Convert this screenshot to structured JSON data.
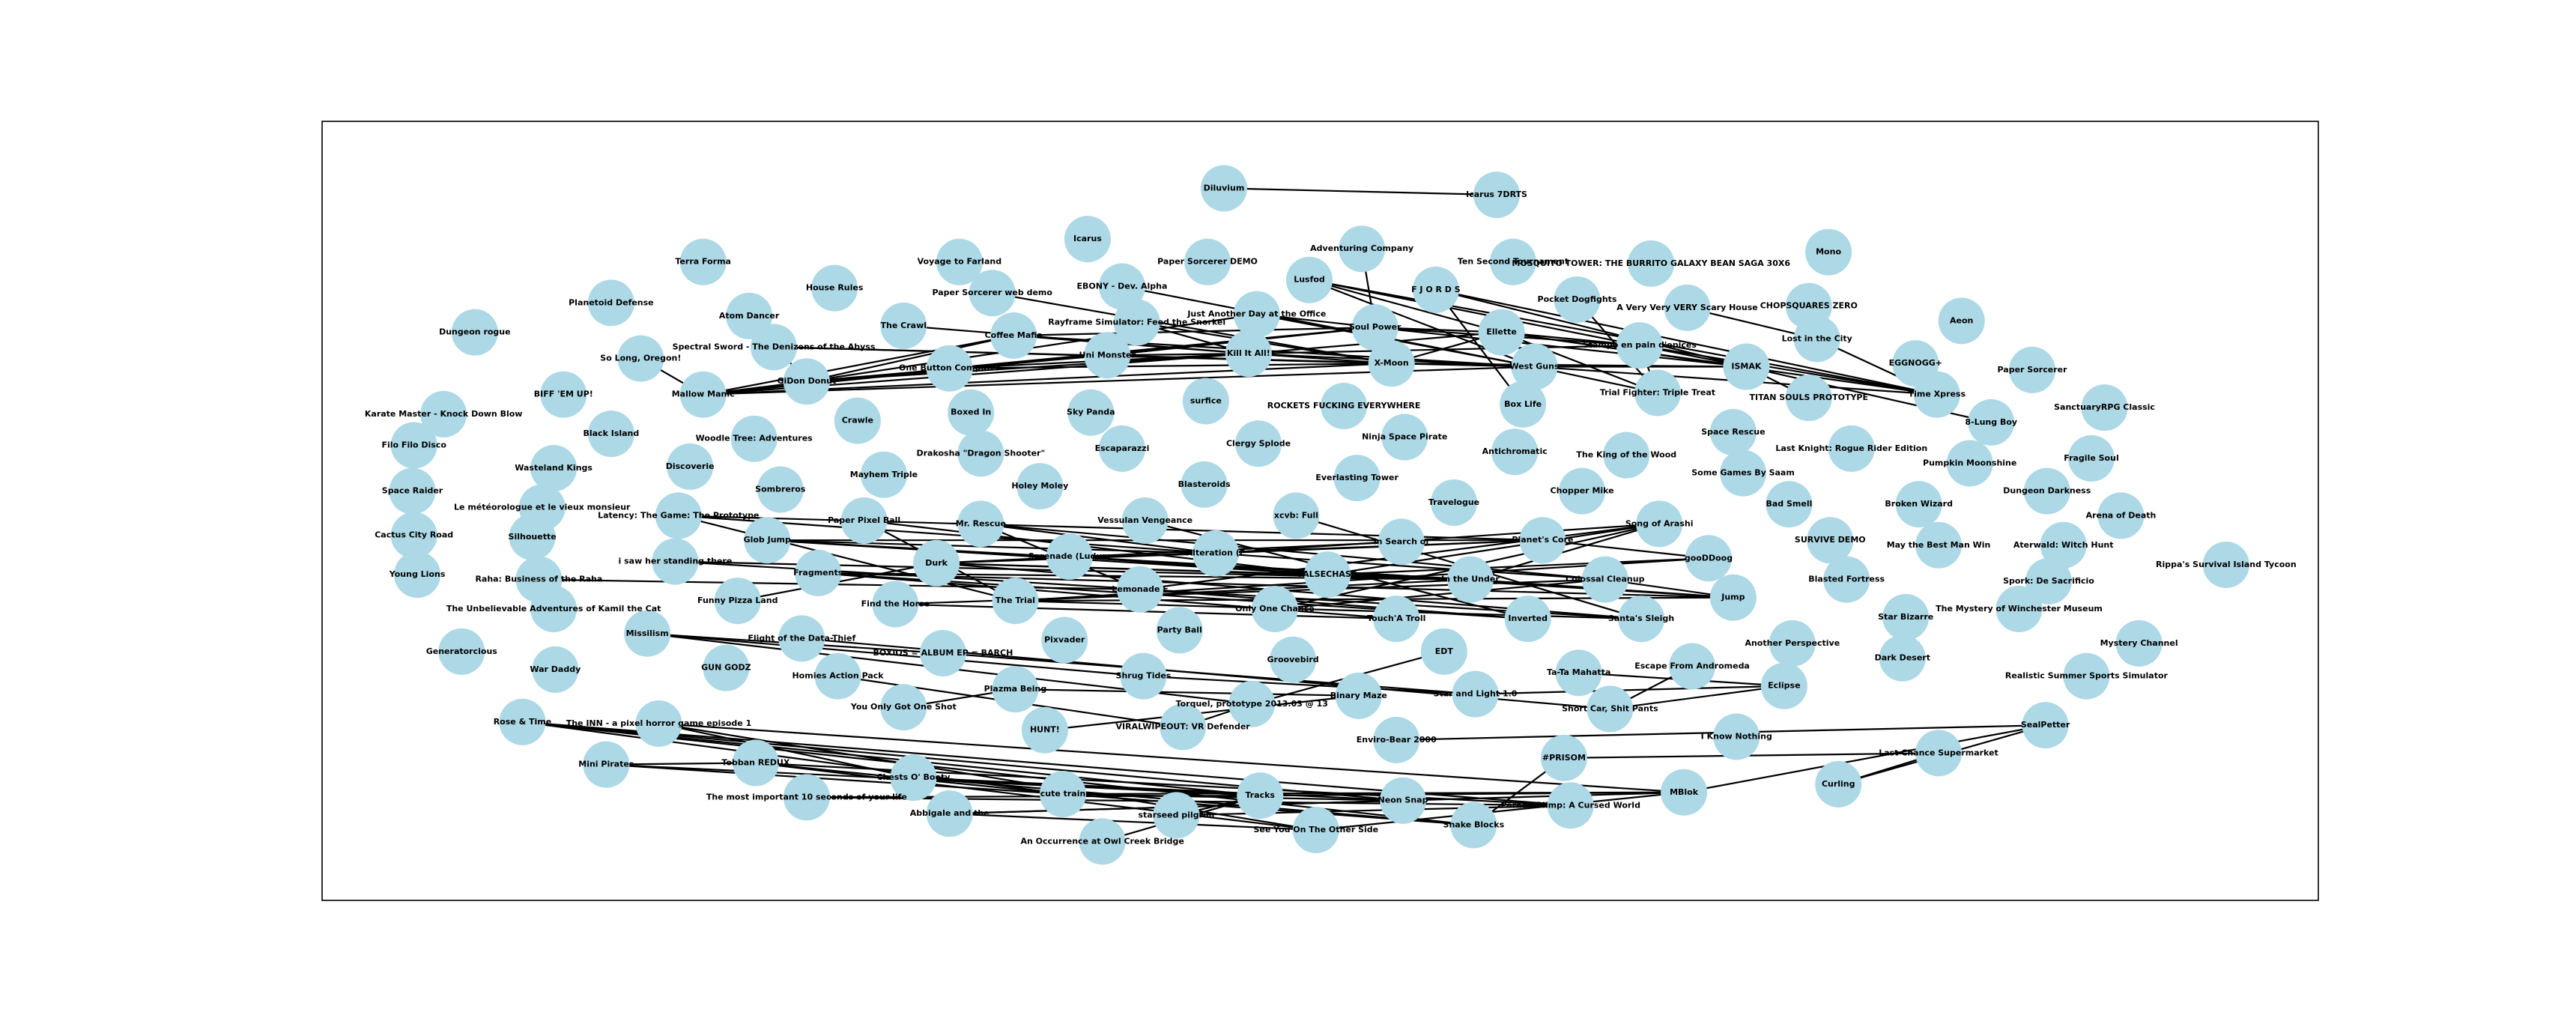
{
  "nodes": [
    {
      "label": "Diluvium"
    },
    {
      "label": "Icarus 7DRTS"
    },
    {
      "label": "Mono"
    },
    {
      "label": "Icarus"
    },
    {
      "label": "Voyage to Farland"
    },
    {
      "label": "Paper Sorcerer DEMO"
    },
    {
      "label": "Adventuring Company"
    },
    {
      "label": "Ten Second Tournament"
    },
    {
      "label": "MOSQUITO TOWER: THE BURRITO GALAXY BEAN SAGA 30X6"
    },
    {
      "label": "Terra Forma"
    },
    {
      "label": "House Rules"
    },
    {
      "label": "EBONY - Dev. Alpha"
    },
    {
      "label": "Lusfod"
    },
    {
      "label": "F J O R D S"
    },
    {
      "label": "Pocket Dogfights"
    },
    {
      "label": "CHOPSQUARES ZERO"
    },
    {
      "label": "Aeon"
    },
    {
      "label": "Planetoid Defense"
    },
    {
      "label": "Atom Dancer"
    },
    {
      "label": "Paper Sorcerer web demo"
    },
    {
      "label": "A Very Very VERY Scary House"
    },
    {
      "label": "Dungeon rogue"
    },
    {
      "label": "The Crawl"
    },
    {
      "label": "Rayframe Simulator: Feed the Snorkel"
    },
    {
      "label": "Just Another Day at the Office"
    },
    {
      "label": "Soul Power"
    },
    {
      "label": "Ellette"
    },
    {
      "label": "Spectral Sword - The Denizens of the Abyss"
    },
    {
      "label": "Coffee Mafia"
    },
    {
      "label": "Lost in the City"
    },
    {
      "label": "Stampo en pain d'epices"
    },
    {
      "label": "So Long, Oregon!"
    },
    {
      "label": "Uni Monster"
    },
    {
      "label": "Kill It All!"
    },
    {
      "label": "X-Moon"
    },
    {
      "label": "West Guns"
    },
    {
      "label": "ISMAK"
    },
    {
      "label": "EGGNOGG+"
    },
    {
      "label": "Paper Sorcerer"
    },
    {
      "label": "One Button Computer"
    },
    {
      "label": "GiDon Donut"
    },
    {
      "label": "Mallow Manic"
    },
    {
      "label": "BIFF 'EM UP!"
    },
    {
      "label": "Trial Fighter: Triple Treat"
    },
    {
      "label": "TITAN SOULS PROTOTYPE"
    },
    {
      "label": "Time Xpress"
    },
    {
      "label": "Boxed In"
    },
    {
      "label": "Sky Panda"
    },
    {
      "label": "surfice"
    },
    {
      "label": "ROCKETS FUCKING EVERYWHERE"
    },
    {
      "label": "Box Life"
    },
    {
      "label": "8-Lung Boy"
    },
    {
      "label": "SanctuaryRPG Classic"
    },
    {
      "label": "Karate Master - Knock Down Blow"
    },
    {
      "label": "Crawle"
    },
    {
      "label": "Woodle Tree: Adventures"
    },
    {
      "label": "Black Island"
    },
    {
      "label": "Clergy Splode"
    },
    {
      "label": "Ninja Space Pirate"
    },
    {
      "label": "Escaparazzi"
    },
    {
      "label": "Antichromatic"
    },
    {
      "label": "Space Rescue"
    },
    {
      "label": "Filo Filo Disco"
    },
    {
      "label": "Drakosha \"Dragon Shooter\""
    },
    {
      "label": "The King of the Wood"
    },
    {
      "label": "Last Knight: Rogue Rider Edition"
    },
    {
      "label": "Fragile Soul"
    },
    {
      "label": "Wasteland Kings"
    },
    {
      "label": "Discoverie"
    },
    {
      "label": "Mayhem Triple"
    },
    {
      "label": "Blasteroids"
    },
    {
      "label": "Everlasting Tower"
    },
    {
      "label": "Some Games By Saam"
    },
    {
      "label": "Pumpkin Moonshine"
    },
    {
      "label": "Space Raider"
    },
    {
      "label": "Sombreros"
    },
    {
      "label": "Holey Moley"
    },
    {
      "label": "Chopper Mike"
    },
    {
      "label": "Dungeon Darkness"
    },
    {
      "label": "Le météorologue et le vieux monsieur"
    },
    {
      "label": "Bad Smell"
    },
    {
      "label": "Broken Wizard"
    },
    {
      "label": "Travelogue"
    },
    {
      "label": "Arena of Death"
    },
    {
      "label": "Latency: The Game: The Prototype"
    },
    {
      "label": "Paper Pixel Ball"
    },
    {
      "label": "Mr. Rescue"
    },
    {
      "label": "Vessulan Vengeance"
    },
    {
      "label": "xcvb: Full"
    },
    {
      "label": "Song of Arashi"
    },
    {
      "label": "Cactus City Road"
    },
    {
      "label": "Silhouette"
    },
    {
      "label": "Glob Jump"
    },
    {
      "label": "In Search of"
    },
    {
      "label": "Planet's Core"
    },
    {
      "label": "SURVIVE DEMO"
    },
    {
      "label": "May the Best Man Win"
    },
    {
      "label": "Aterwald: Witch Hunt"
    },
    {
      "label": "Serenade (Ludum"
    },
    {
      "label": "Alteration (E"
    },
    {
      "label": "gooDDoog"
    },
    {
      "label": "Rippa's Survival Island Tycoon"
    },
    {
      "label": "i saw her standing there"
    },
    {
      "label": "Durk"
    },
    {
      "label": "Fragments"
    },
    {
      "label": "FALSECHASE"
    },
    {
      "label": "In the Under"
    },
    {
      "label": "Colossal Cleanup"
    },
    {
      "label": "Young Lions"
    },
    {
      "label": "Raha: Business of the Raha"
    },
    {
      "label": "Blasted Fortress"
    },
    {
      "label": "Spork: De Sacrificio"
    },
    {
      "label": "Lemonade F"
    },
    {
      "label": "Jump"
    },
    {
      "label": "Find the Horse"
    },
    {
      "label": "The Trial"
    },
    {
      "label": "Funny Pizza Land"
    },
    {
      "label": "Only One Chance"
    },
    {
      "label": "Touch'A Troll"
    },
    {
      "label": "Inverted"
    },
    {
      "label": "Santa's Sleigh"
    },
    {
      "label": "The Unbelievable Adventures of Kamil the Cat"
    },
    {
      "label": "The Mystery of Winchester Museum"
    },
    {
      "label": "Star Bizarre"
    },
    {
      "label": "Missilism"
    },
    {
      "label": "Party Ball"
    },
    {
      "label": "Pixvader"
    },
    {
      "label": "Flight of the Data-Thief"
    },
    {
      "label": "Another Perspective"
    },
    {
      "label": "Generatorcious"
    },
    {
      "label": "BOXIOS = ALBUM EP = BARCH"
    },
    {
      "label": "Mystery Channel"
    },
    {
      "label": "Groovebird"
    },
    {
      "label": "EDT"
    },
    {
      "label": "Dark Desert"
    },
    {
      "label": "GUN GODZ"
    },
    {
      "label": "War Daddy"
    },
    {
      "label": "Escape From Andromeda"
    },
    {
      "label": "Ta-Ta Mahatta"
    },
    {
      "label": "Realistic Summer Sports Simulator"
    },
    {
      "label": "Homies Action Pack"
    },
    {
      "label": "Shrug Tides"
    },
    {
      "label": "Eclipse"
    },
    {
      "label": "Plazma Being"
    },
    {
      "label": "Binary Maze"
    },
    {
      "label": "Star and Light 1.0"
    },
    {
      "label": "Torquel, prototype 2013.03 @ 13"
    },
    {
      "label": "Short Car, Shit Pants"
    },
    {
      "label": "You Only Got One Shot"
    },
    {
      "label": "Rose & Time"
    },
    {
      "label": "The INN - a pixel horror game episode 1"
    },
    {
      "label": "HUNT!"
    },
    {
      "label": "VIRALWIPEOUT: VR Defender"
    },
    {
      "label": "SealPetter"
    },
    {
      "label": "I Know Nothing"
    },
    {
      "label": "Enviro-Bear 2000"
    },
    {
      "label": "#PRISOM"
    },
    {
      "label": "Last Chance Supermarket"
    },
    {
      "label": "Mini Pirates"
    },
    {
      "label": "Tobban REDUX"
    },
    {
      "label": "Chests O' Booty"
    },
    {
      "label": "Curling"
    },
    {
      "label": "MBlok"
    },
    {
      "label": "The most important 10 seconds of your life"
    },
    {
      "label": "cute train"
    },
    {
      "label": "Tracks"
    },
    {
      "label": "Neon Snap"
    },
    {
      "label": "Parade Blimp: A Cursed World"
    },
    {
      "label": "Abbigale and the"
    },
    {
      "label": "starseed pilgrim"
    },
    {
      "label": "Snake Blocks"
    },
    {
      "label": "See You On The Other Side"
    },
    {
      "label": "An Occurrence at Owl Creek Bridge"
    }
  ],
  "edges": [
    [
      41,
      40
    ],
    [
      41,
      28
    ],
    [
      41,
      33
    ],
    [
      41,
      25
    ],
    [
      41,
      34
    ],
    [
      41,
      35
    ],
    [
      41,
      39
    ],
    [
      40,
      28
    ],
    [
      40,
      32
    ],
    [
      40,
      33
    ],
    [
      40,
      24
    ],
    [
      27,
      34
    ],
    [
      27,
      35
    ],
    [
      39,
      33
    ],
    [
      39,
      34
    ],
    [
      39,
      25
    ],
    [
      28,
      33
    ],
    [
      28,
      25
    ],
    [
      28,
      35
    ],
    [
      32,
      33
    ],
    [
      32,
      34
    ],
    [
      32,
      25
    ],
    [
      33,
      34
    ],
    [
      33,
      35
    ],
    [
      33,
      26
    ],
    [
      33,
      30
    ],
    [
      34,
      35
    ],
    [
      34,
      26
    ],
    [
      34,
      36
    ],
    [
      35,
      36
    ],
    [
      35,
      45
    ],
    [
      35,
      43
    ],
    [
      25,
      26
    ],
    [
      25,
      30
    ],
    [
      25,
      36
    ],
    [
      26,
      36
    ],
    [
      26,
      45
    ],
    [
      26,
      30
    ],
    [
      12,
      26
    ],
    [
      12,
      35
    ],
    [
      12,
      36
    ],
    [
      12,
      45
    ],
    [
      13,
      36
    ],
    [
      13,
      45
    ],
    [
      13,
      50
    ],
    [
      24,
      35
    ],
    [
      24,
      25
    ],
    [
      23,
      34
    ],
    [
      23,
      33
    ],
    [
      22,
      33
    ],
    [
      19,
      34
    ],
    [
      11,
      35
    ],
    [
      14,
      43
    ],
    [
      20,
      29
    ],
    [
      30,
      45
    ],
    [
      36,
      51
    ],
    [
      36,
      44
    ],
    [
      43,
      26
    ],
    [
      30,
      43
    ],
    [
      6,
      25
    ],
    [
      31,
      41
    ],
    [
      18,
      40
    ],
    [
      29,
      45
    ],
    [
      84,
      115
    ],
    [
      84,
      99
    ],
    [
      84,
      94
    ],
    [
      92,
      99
    ],
    [
      92,
      105
    ],
    [
      92,
      106
    ],
    [
      92,
      94
    ],
    [
      85,
      115
    ],
    [
      85,
      105
    ],
    [
      86,
      107
    ],
    [
      86,
      112
    ],
    [
      86,
      99
    ],
    [
      98,
      106
    ],
    [
      98,
      113
    ],
    [
      98,
      105
    ],
    [
      99,
      107
    ],
    [
      99,
      89
    ],
    [
      99,
      94
    ],
    [
      103,
      120
    ],
    [
      103,
      94
    ],
    [
      103,
      106
    ],
    [
      103,
      99
    ],
    [
      103,
      105
    ],
    [
      104,
      113
    ],
    [
      104,
      119
    ],
    [
      104,
      106
    ],
    [
      102,
      106
    ],
    [
      102,
      120
    ],
    [
      112,
      89
    ],
    [
      112,
      119
    ],
    [
      115,
      106
    ],
    [
      115,
      113
    ],
    [
      115,
      120
    ],
    [
      114,
      107
    ],
    [
      114,
      118
    ],
    [
      117,
      89
    ],
    [
      117,
      107
    ],
    [
      105,
      89
    ],
    [
      105,
      100
    ],
    [
      106,
      113
    ],
    [
      93,
      103
    ],
    [
      94,
      100
    ],
    [
      87,
      119
    ],
    [
      88,
      120
    ],
    [
      107,
      113
    ],
    [
      100,
      115
    ],
    [
      89,
      106
    ],
    [
      118,
      104
    ],
    [
      116,
      103
    ],
    [
      109,
      112
    ],
    [
      149,
      164
    ],
    [
      149,
      165
    ],
    [
      149,
      166
    ],
    [
      149,
      170
    ],
    [
      149,
      167
    ],
    [
      150,
      160
    ],
    [
      150,
      162
    ],
    [
      150,
      171
    ],
    [
      158,
      165
    ],
    [
      158,
      164
    ],
    [
      159,
      164
    ],
    [
      159,
      171
    ],
    [
      159,
      167
    ],
    [
      160,
      170
    ],
    [
      160,
      165
    ],
    [
      163,
      165
    ],
    [
      164,
      170
    ],
    [
      164,
      166
    ],
    [
      164,
      162
    ],
    [
      165,
      162
    ],
    [
      165,
      169
    ],
    [
      166,
      168
    ],
    [
      168,
      171
    ],
    [
      168,
      162
    ],
    [
      169,
      167
    ],
    [
      170,
      156
    ],
    [
      171,
      162
    ],
    [
      153,
      162
    ],
    [
      153,
      161
    ],
    [
      157,
      161
    ],
    [
      157,
      156
    ],
    [
      172,
      165
    ],
    [
      163,
      167
    ],
    [
      160,
      166
    ],
    [
      158,
      159
    ],
    [
      0,
      1
    ],
    [
      124,
      130
    ],
    [
      124,
      141
    ],
    [
      124,
      146
    ],
    [
      127,
      147
    ],
    [
      130,
      145
    ],
    [
      140,
      152
    ],
    [
      141,
      145
    ],
    [
      146,
      133
    ],
    [
      142,
      138
    ],
    [
      142,
      145
    ],
    [
      142,
      147
    ],
    [
      143,
      144
    ],
    [
      144,
      151
    ],
    [
      152,
      146
    ],
    [
      148,
      143
    ],
    [
      137,
      147
    ],
    [
      155,
      153
    ]
  ]
}
